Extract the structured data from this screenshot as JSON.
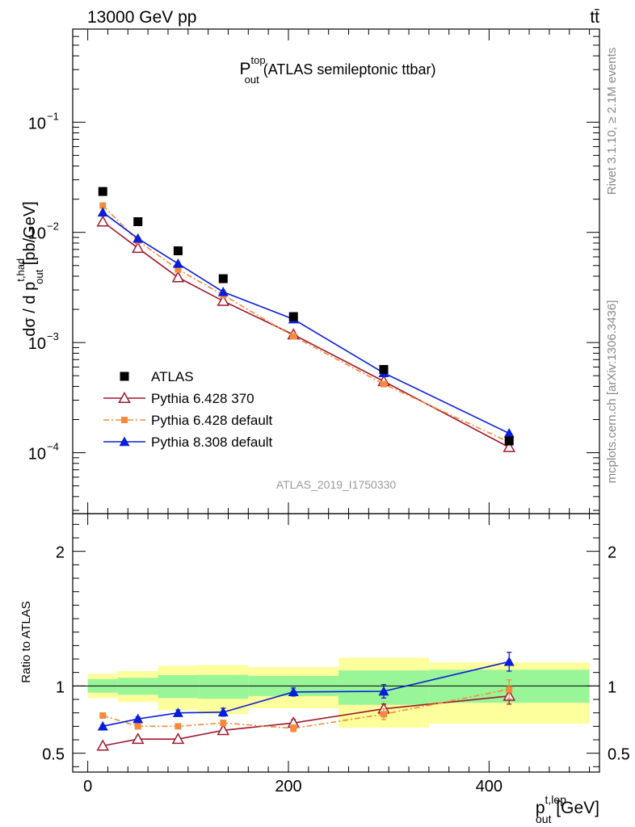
{
  "header": {
    "left": "13000 GeV pp",
    "right": "tt̄"
  },
  "side_texts": {
    "upper": "Rivet 3.1.10, ≥ 2.1M events",
    "lower": "mcplots.cern.ch [arXiv:1306.3436]"
  },
  "analysis_label": "ATLAS_2019_I1750330",
  "plot_title": {
    "main": "P",
    "sup": "top",
    "sub": "out",
    "rest": " (ATLAS semileptonic ttbar)"
  },
  "main_ylabel": {
    "lead": "dσ / d p",
    "sup": "t,had",
    "sub": "out",
    "tail": " [pb/GeV]"
  },
  "ratio_ylabel": "Ratio to ATLAS",
  "xlabel": {
    "lead": "p",
    "sup": "t,lep",
    "sub": "out",
    "tail": " [GeV]"
  },
  "colors": {
    "atlas": "#000000",
    "py6_370": "#a0192e",
    "py6_default": "#f58a3c",
    "py8_default": "#0a1ed8",
    "band_green": "#98f598",
    "band_yellow": "#fdfe9c"
  },
  "chart_data": {
    "type": "scatter",
    "x_axis": {
      "range": [
        -15,
        510
      ],
      "ticks": [
        0,
        200,
        400
      ],
      "tick_labels": [
        "0",
        "200",
        "400"
      ]
    },
    "main_y_axis": {
      "scale": "log",
      "range": [
        2.8e-05,
        0.7
      ],
      "ticks": [
        0.0001,
        0.001,
        0.01,
        0.1
      ],
      "tick_labels": [
        "10",
        "10",
        "10",
        "10"
      ],
      "tick_exponents": [
        "−4",
        "−3",
        "−2",
        "−1"
      ]
    },
    "ratio_y_axis": {
      "range": [
        0.36,
        2.28
      ],
      "ticks": [
        0.5,
        1,
        2
      ],
      "tick_labels": [
        "0.5",
        "1",
        "2"
      ]
    },
    "legend": [
      {
        "key": "atlas",
        "label": "ATLAS",
        "marker": "square",
        "line": "none"
      },
      {
        "key": "py6_370",
        "label": "Pythia 6.428 370",
        "marker": "triangle-open",
        "line": "solid"
      },
      {
        "key": "py6_default",
        "label": "Pythia 6.428 default",
        "marker": "square-small",
        "line": "dashdot"
      },
      {
        "key": "py8_default",
        "label": "Pythia 8.308 default",
        "marker": "triangle",
        "line": "solid"
      }
    ],
    "bins": [
      {
        "lo": 0,
        "hi": 30,
        "x": 15
      },
      {
        "lo": 30,
        "hi": 70,
        "x": 50
      },
      {
        "lo": 70,
        "hi": 110,
        "x": 90
      },
      {
        "lo": 110,
        "hi": 160,
        "x": 135
      },
      {
        "lo": 160,
        "hi": 250,
        "x": 205
      },
      {
        "lo": 250,
        "hi": 340,
        "x": 295
      },
      {
        "lo": 340,
        "hi": 500,
        "x": 420
      }
    ],
    "atlas": [
      0.0235,
      0.0125,
      0.0068,
      0.0038,
      0.00172,
      0.00057,
      0.000128
    ],
    "band_green": [
      [
        0.95,
        1.05
      ],
      [
        0.935,
        1.06
      ],
      [
        0.91,
        1.08
      ],
      [
        0.905,
        1.082
      ],
      [
        0.925,
        1.075
      ],
      [
        0.86,
        1.115
      ],
      [
        0.875,
        1.12
      ]
    ],
    "band_yellow": [
      [
        0.91,
        1.09
      ],
      [
        0.88,
        1.11
      ],
      [
        0.82,
        1.15
      ],
      [
        0.79,
        1.155
      ],
      [
        0.835,
        1.14
      ],
      [
        0.69,
        1.21
      ],
      [
        0.72,
        1.175
      ]
    ],
    "series": [
      {
        "key": "py6_370",
        "values": [
          0.0125,
          0.0072,
          0.0039,
          0.00238,
          0.00118,
          0.000445,
          0.000112
        ],
        "ratio": [
          0.555,
          0.605,
          0.605,
          0.67,
          0.725,
          0.83,
          0.925
        ],
        "ratio_err": [
          0.01,
          0.01,
          0.012,
          0.018,
          0.025,
          0.035,
          0.06
        ]
      },
      {
        "key": "py6_default",
        "values": [
          0.0175,
          0.0084,
          0.0046,
          0.0027,
          0.00114,
          0.00042,
          0.000125
        ],
        "ratio": [
          0.78,
          0.7,
          0.7,
          0.725,
          0.685,
          0.79,
          0.975
        ],
        "ratio_err": [
          0.01,
          0.012,
          0.015,
          0.02,
          0.025,
          0.04,
          0.07
        ]
      },
      {
        "key": "py8_default",
        "values": [
          0.0152,
          0.0088,
          0.0052,
          0.00288,
          0.00163,
          0.00053,
          0.00015
        ],
        "ratio": [
          0.7,
          0.755,
          0.8,
          0.805,
          0.955,
          0.96,
          1.18
        ],
        "ratio_err": [
          0.01,
          0.015,
          0.022,
          0.03,
          0.03,
          0.05,
          0.07
        ]
      }
    ]
  }
}
